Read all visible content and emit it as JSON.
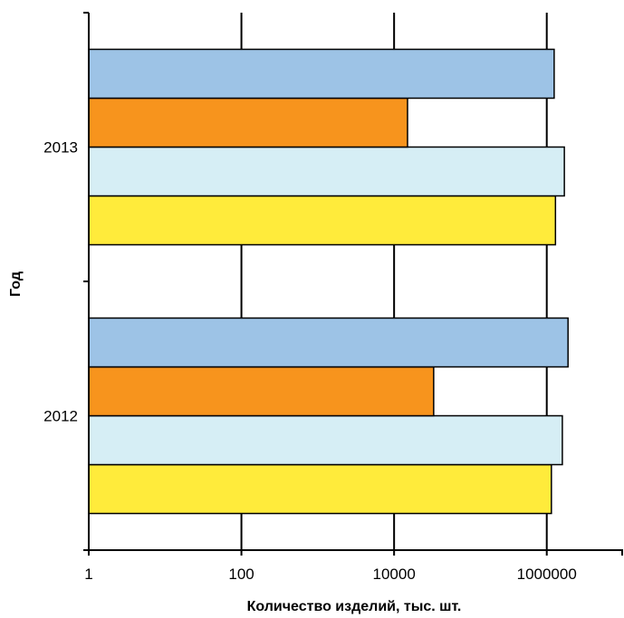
{
  "chart_data": {
    "type": "bar",
    "orientation": "horizontal",
    "x_scale": "log",
    "xlim": [
      1,
      10000000
    ],
    "x_ticks": [
      1,
      100,
      10000,
      1000000
    ],
    "x_tick_labels": [
      "1",
      "100",
      "10000",
      "1000000"
    ],
    "categories": [
      "2012",
      "2013"
    ],
    "xlabel": "Количество изделий, тыс. шт.",
    "ylabel": "Год",
    "title": "",
    "grid": "vertical major gridlines",
    "legend": "none",
    "series": [
      {
        "color": "#FFEB3B",
        "values": [
          1150000,
          1300000
        ]
      },
      {
        "color": "#D6EEF5",
        "values": [
          1600000,
          1700000
        ]
      },
      {
        "color": "#F7941D",
        "values": [
          33000,
          15000
        ]
      },
      {
        "color": "#9DC3E6",
        "values": [
          1900000,
          1250000
        ]
      }
    ]
  }
}
